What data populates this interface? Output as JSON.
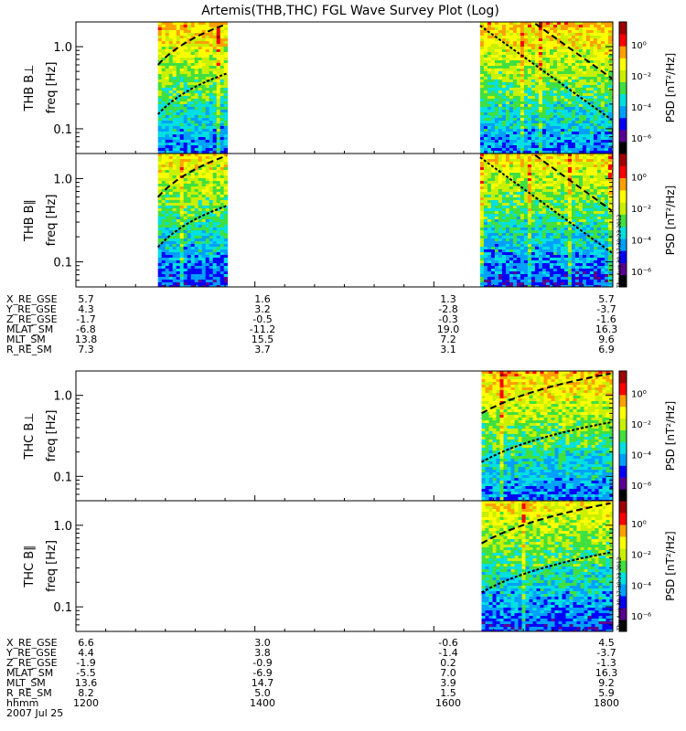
{
  "chart_data": {
    "type": "heatmap",
    "title": "Artemis(THB,THC) FGL Wave Survey Plot (Log)",
    "x_axis": {
      "label": "hhmm",
      "range": [
        "1200",
        "1800"
      ],
      "ticks": [
        "1200",
        "1400",
        "1600",
        "1800"
      ]
    },
    "date": "2007 Jul 25",
    "y_axis_scale": "log",
    "y_ticks": [
      "1.0",
      "0.1"
    ],
    "y_range_hz": [
      0.05,
      2.0
    ],
    "colorbar": {
      "label": "PSD [nT²/Hz]",
      "scale": "log",
      "ticks": [
        "10⁰",
        "10⁻²",
        "10⁻⁴",
        "10⁻⁶"
      ],
      "range": [
        1e-07,
        30
      ],
      "colormap": [
        "#000000",
        "#5a0090",
        "#0000ff",
        "#00a0ff",
        "#00e0e0",
        "#40e040",
        "#c8f000",
        "#ffff00",
        "#ffa000",
        "#ff0000",
        "#a00000"
      ]
    },
    "timestamp": "Thu Aug 30 17:38:23 2012",
    "panels": [
      {
        "probe": "THB",
        "ylabel": "THB B⊥",
        "freq_label": "freq [Hz]",
        "data_intervals": [
          [
            "1255",
            "1341"
          ],
          [
            "1631",
            "1800"
          ]
        ]
      },
      {
        "probe": "THB",
        "ylabel": "THB B∥",
        "freq_label": "freq [Hz]",
        "data_intervals": [
          [
            "1255",
            "1341"
          ],
          [
            "1631",
            "1800"
          ]
        ]
      },
      {
        "probe": "THC",
        "ylabel": "THC B⊥",
        "freq_label": "freq [Hz]",
        "data_intervals": [
          [
            "1632",
            "1800"
          ]
        ]
      },
      {
        "probe": "THC",
        "ylabel": "THC B∥",
        "freq_label": "freq [Hz]",
        "data_intervals": [
          [
            "1632",
            "1800"
          ]
        ]
      }
    ]
  },
  "ephemeris": [
    {
      "probe": "THB",
      "rows": [
        {
          "label": "X_RE_GSE",
          "values": [
            "5.7",
            "1.6",
            "1.3",
            "5.7"
          ]
        },
        {
          "label": "Y_RE_GSE",
          "values": [
            "4.3",
            "3.2",
            "-2.8",
            "-3.7"
          ]
        },
        {
          "label": "Z_RE_GSE",
          "values": [
            "-1.7",
            "-0.5",
            "-0.3",
            "-1.6"
          ]
        },
        {
          "label": "MLAT_SM",
          "values": [
            "-6.8",
            "-11.2",
            "19.0",
            "16.3"
          ]
        },
        {
          "label": "MLT_SM",
          "values": [
            "13.8",
            "15.5",
            "7.2",
            "9.6"
          ]
        },
        {
          "label": "R_RE_SM",
          "values": [
            "7.3",
            "3.7",
            "3.1",
            "6.9"
          ]
        }
      ]
    },
    {
      "probe": "THC",
      "rows": [
        {
          "label": "X_RE_GSE",
          "values": [
            "6.6",
            "3.0",
            "-0.6",
            "4.5"
          ]
        },
        {
          "label": "Y_RE_GSE",
          "values": [
            "4.4",
            "3.8",
            "-1.4",
            "-3.7"
          ]
        },
        {
          "label": "Z_RE_GSE",
          "values": [
            "-1.9",
            "-0.9",
            "0.2",
            "-1.3"
          ]
        },
        {
          "label": "MLAT_SM",
          "values": [
            "-5.5",
            "-6.9",
            "7.0",
            "16.3"
          ]
        },
        {
          "label": "MLT_SM",
          "values": [
            "13.6",
            "14.7",
            "3.9",
            "9.2"
          ]
        },
        {
          "label": "R_RE_SM",
          "values": [
            "8.2",
            "5.0",
            "1.5",
            "5.9"
          ]
        },
        {
          "label": "hhmm",
          "values": [
            "1200",
            "1400",
            "1600",
            "1800"
          ]
        }
      ]
    }
  ]
}
